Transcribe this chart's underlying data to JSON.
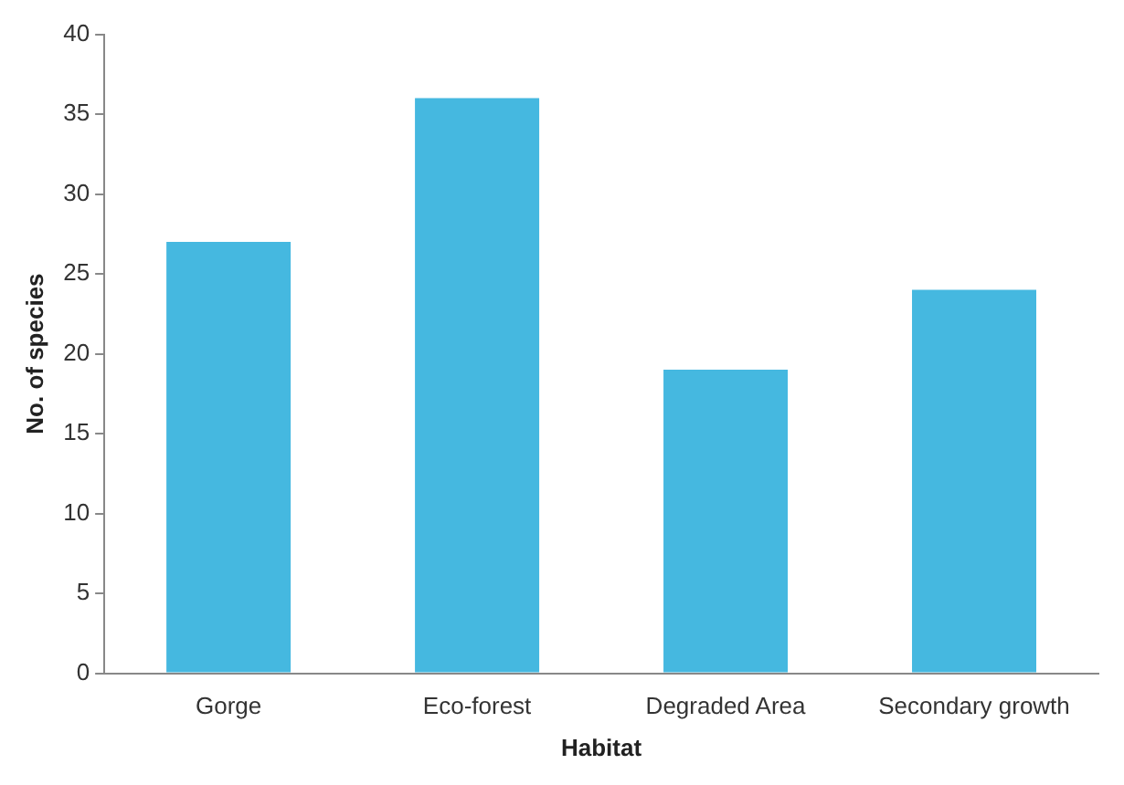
{
  "chart_data": {
    "type": "bar",
    "xlabel": "Habitat",
    "ylabel": "No. of species",
    "categories": [
      "Gorge",
      "Eco-forest",
      "Degraded Area",
      "Secondary growth"
    ],
    "values": [
      27,
      36,
      19,
      24
    ],
    "color": "#45b8e0",
    "ylim": [
      0,
      40
    ],
    "yticks": [
      0,
      5,
      10,
      15,
      20,
      25,
      30,
      35,
      40
    ],
    "grid": false,
    "legend": false
  }
}
